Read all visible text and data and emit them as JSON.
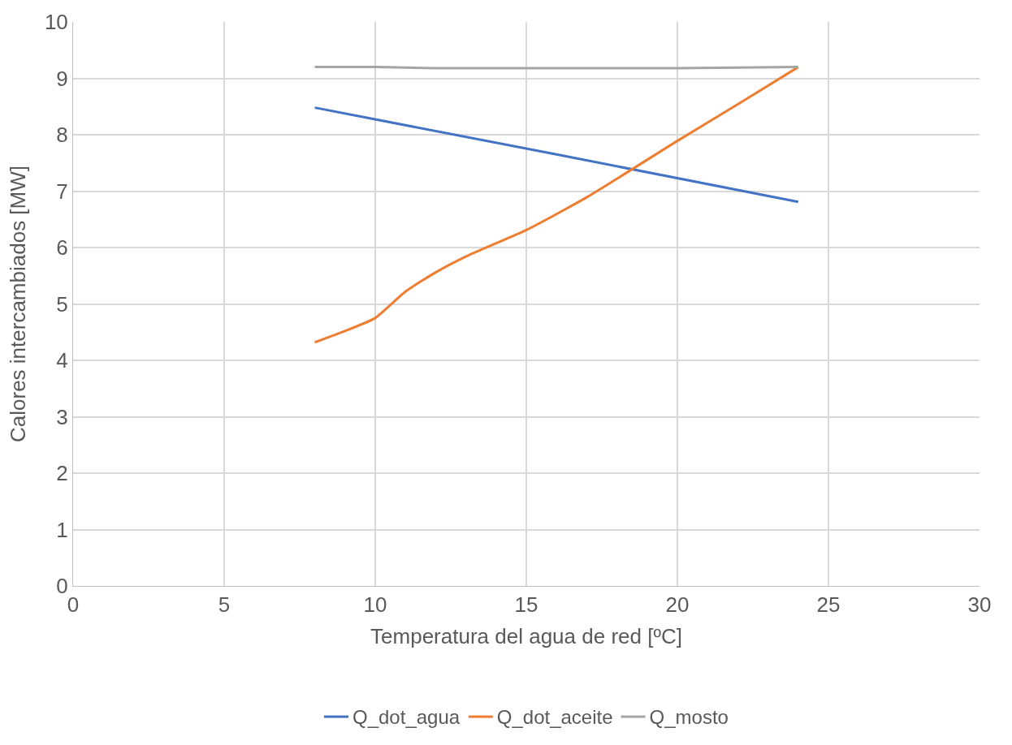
{
  "chart_data": {
    "type": "line",
    "xlabel": "Temperatura del agua de red [ºC]",
    "ylabel": "Calores intercambiados [MW]",
    "xlim": [
      0,
      30
    ],
    "xticks": [
      0,
      5,
      10,
      15,
      20,
      25,
      30
    ],
    "ylim": [
      0,
      10
    ],
    "yticks": [
      0,
      1,
      2,
      3,
      4,
      5,
      6,
      7,
      8,
      9,
      10
    ],
    "grid": true,
    "legend": "bottom",
    "marker": "none",
    "line_style": "solid",
    "series": [
      {
        "name": "Q_dot_agua",
        "color": "#4472c4",
        "x": [
          8,
          16,
          24
        ],
        "values": [
          8.48,
          7.65,
          6.81
        ]
      },
      {
        "name": "Q_dot_aceite",
        "color": "#ed7d31",
        "x": [
          8,
          9,
          10,
          11,
          12,
          13,
          15,
          17,
          20,
          22,
          24
        ],
        "values": [
          4.32,
          4.52,
          4.75,
          5.22,
          5.56,
          5.84,
          6.31,
          6.89,
          7.89,
          8.54,
          9.2
        ]
      },
      {
        "name": "Q_mosto",
        "color": "#a5a5a5",
        "x": [
          8,
          10,
          12,
          16,
          20,
          24
        ],
        "values": [
          9.2,
          9.2,
          9.18,
          9.18,
          9.18,
          9.2
        ]
      }
    ]
  }
}
